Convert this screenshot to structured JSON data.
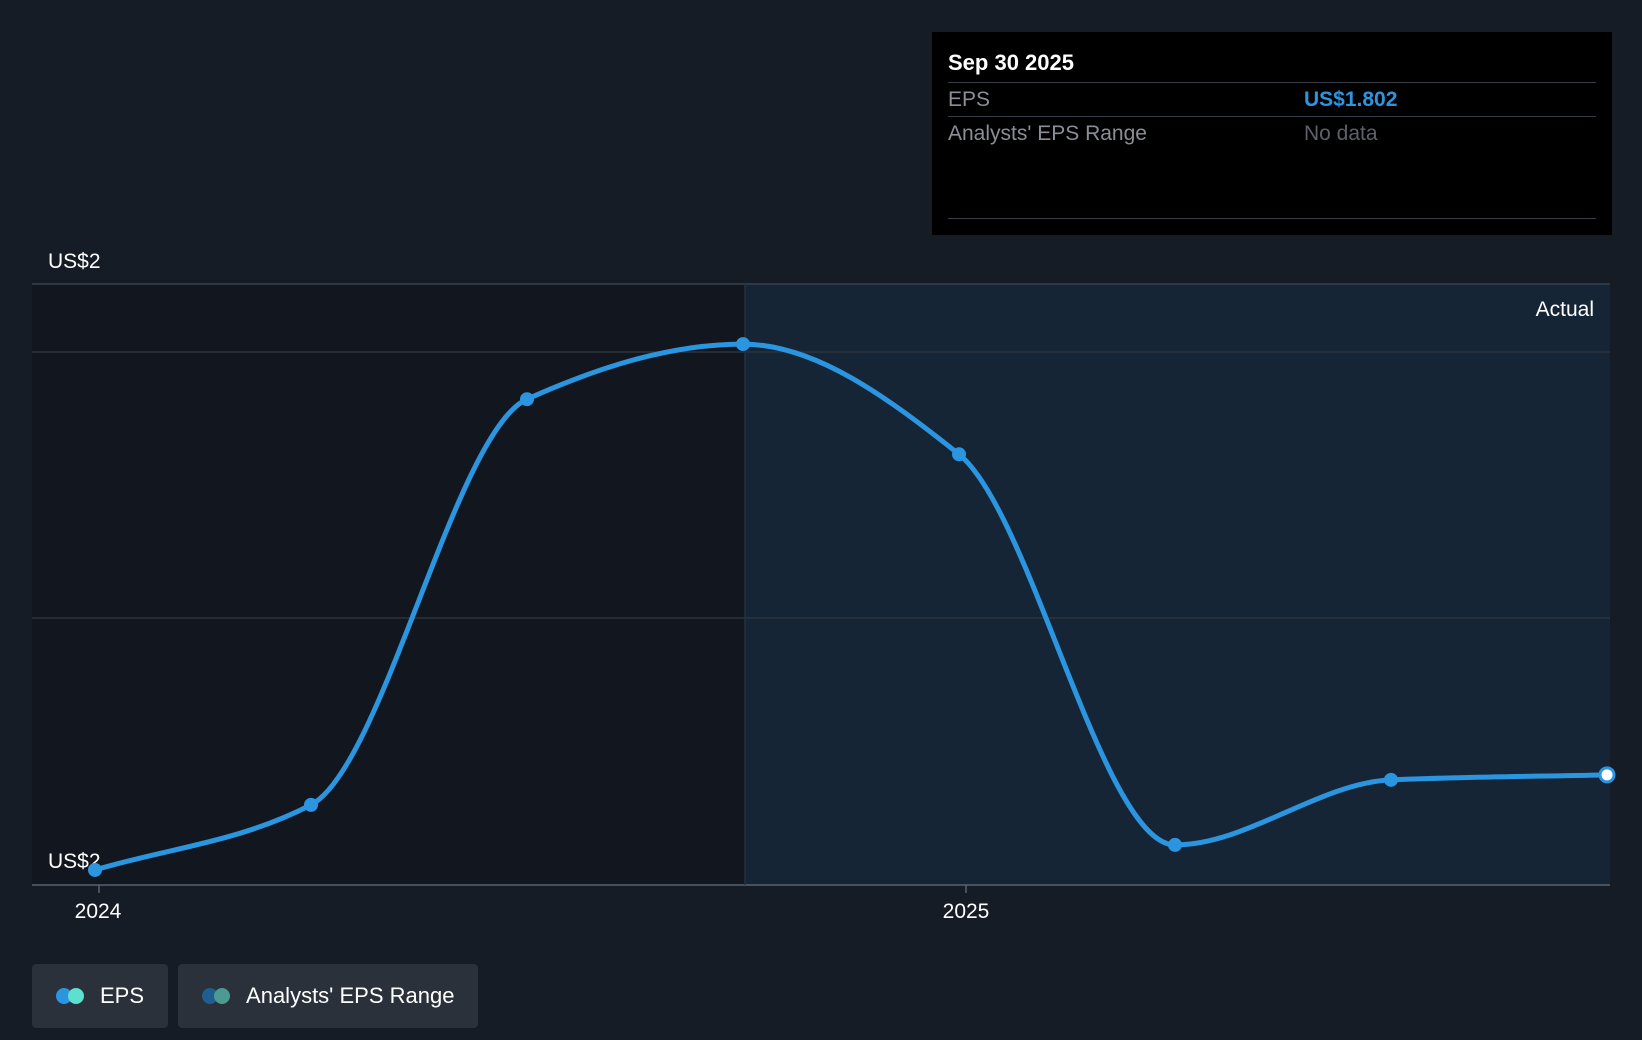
{
  "tooltip": {
    "date": "Sep 30 2025",
    "rows": [
      {
        "label": "EPS",
        "value": "US$1.802"
      },
      {
        "label": "Analysts' EPS Range",
        "value": "No data"
      }
    ]
  },
  "legend": {
    "items": [
      {
        "label": "EPS",
        "colors": [
          "#2b95e0",
          "#5ee0d0"
        ]
      },
      {
        "label": "Analysts' EPS Range",
        "colors": [
          "#1f5f8f",
          "#4c9a92"
        ]
      }
    ]
  },
  "colors": {
    "background": "#161c25",
    "past_shade": "#12171f",
    "actual_shade": "#152536",
    "line": "#2b95e0",
    "grid": "#2c333c",
    "tooltip_bg": "#000000"
  },
  "chart_data": {
    "type": "line",
    "title": "",
    "xlabel": "",
    "ylabel": "",
    "y_tick_labels": [
      "US$2",
      "US$2"
    ],
    "x_tick_labels": [
      "2024",
      "2025"
    ],
    "region_label": "Actual",
    "ylim": [
      1.78,
      1.9
    ],
    "grid": true,
    "series": [
      {
        "name": "EPS",
        "x": [
          "2023-12-31",
          "2024-03-31",
          "2024-06-30",
          "2024-09-30",
          "2024-12-31",
          "2025-03-31",
          "2025-06-30",
          "2025-09-30"
        ],
        "values": [
          1.783,
          1.796,
          1.877,
          1.888,
          1.866,
          1.788,
          1.801,
          1.802
        ]
      }
    ]
  }
}
